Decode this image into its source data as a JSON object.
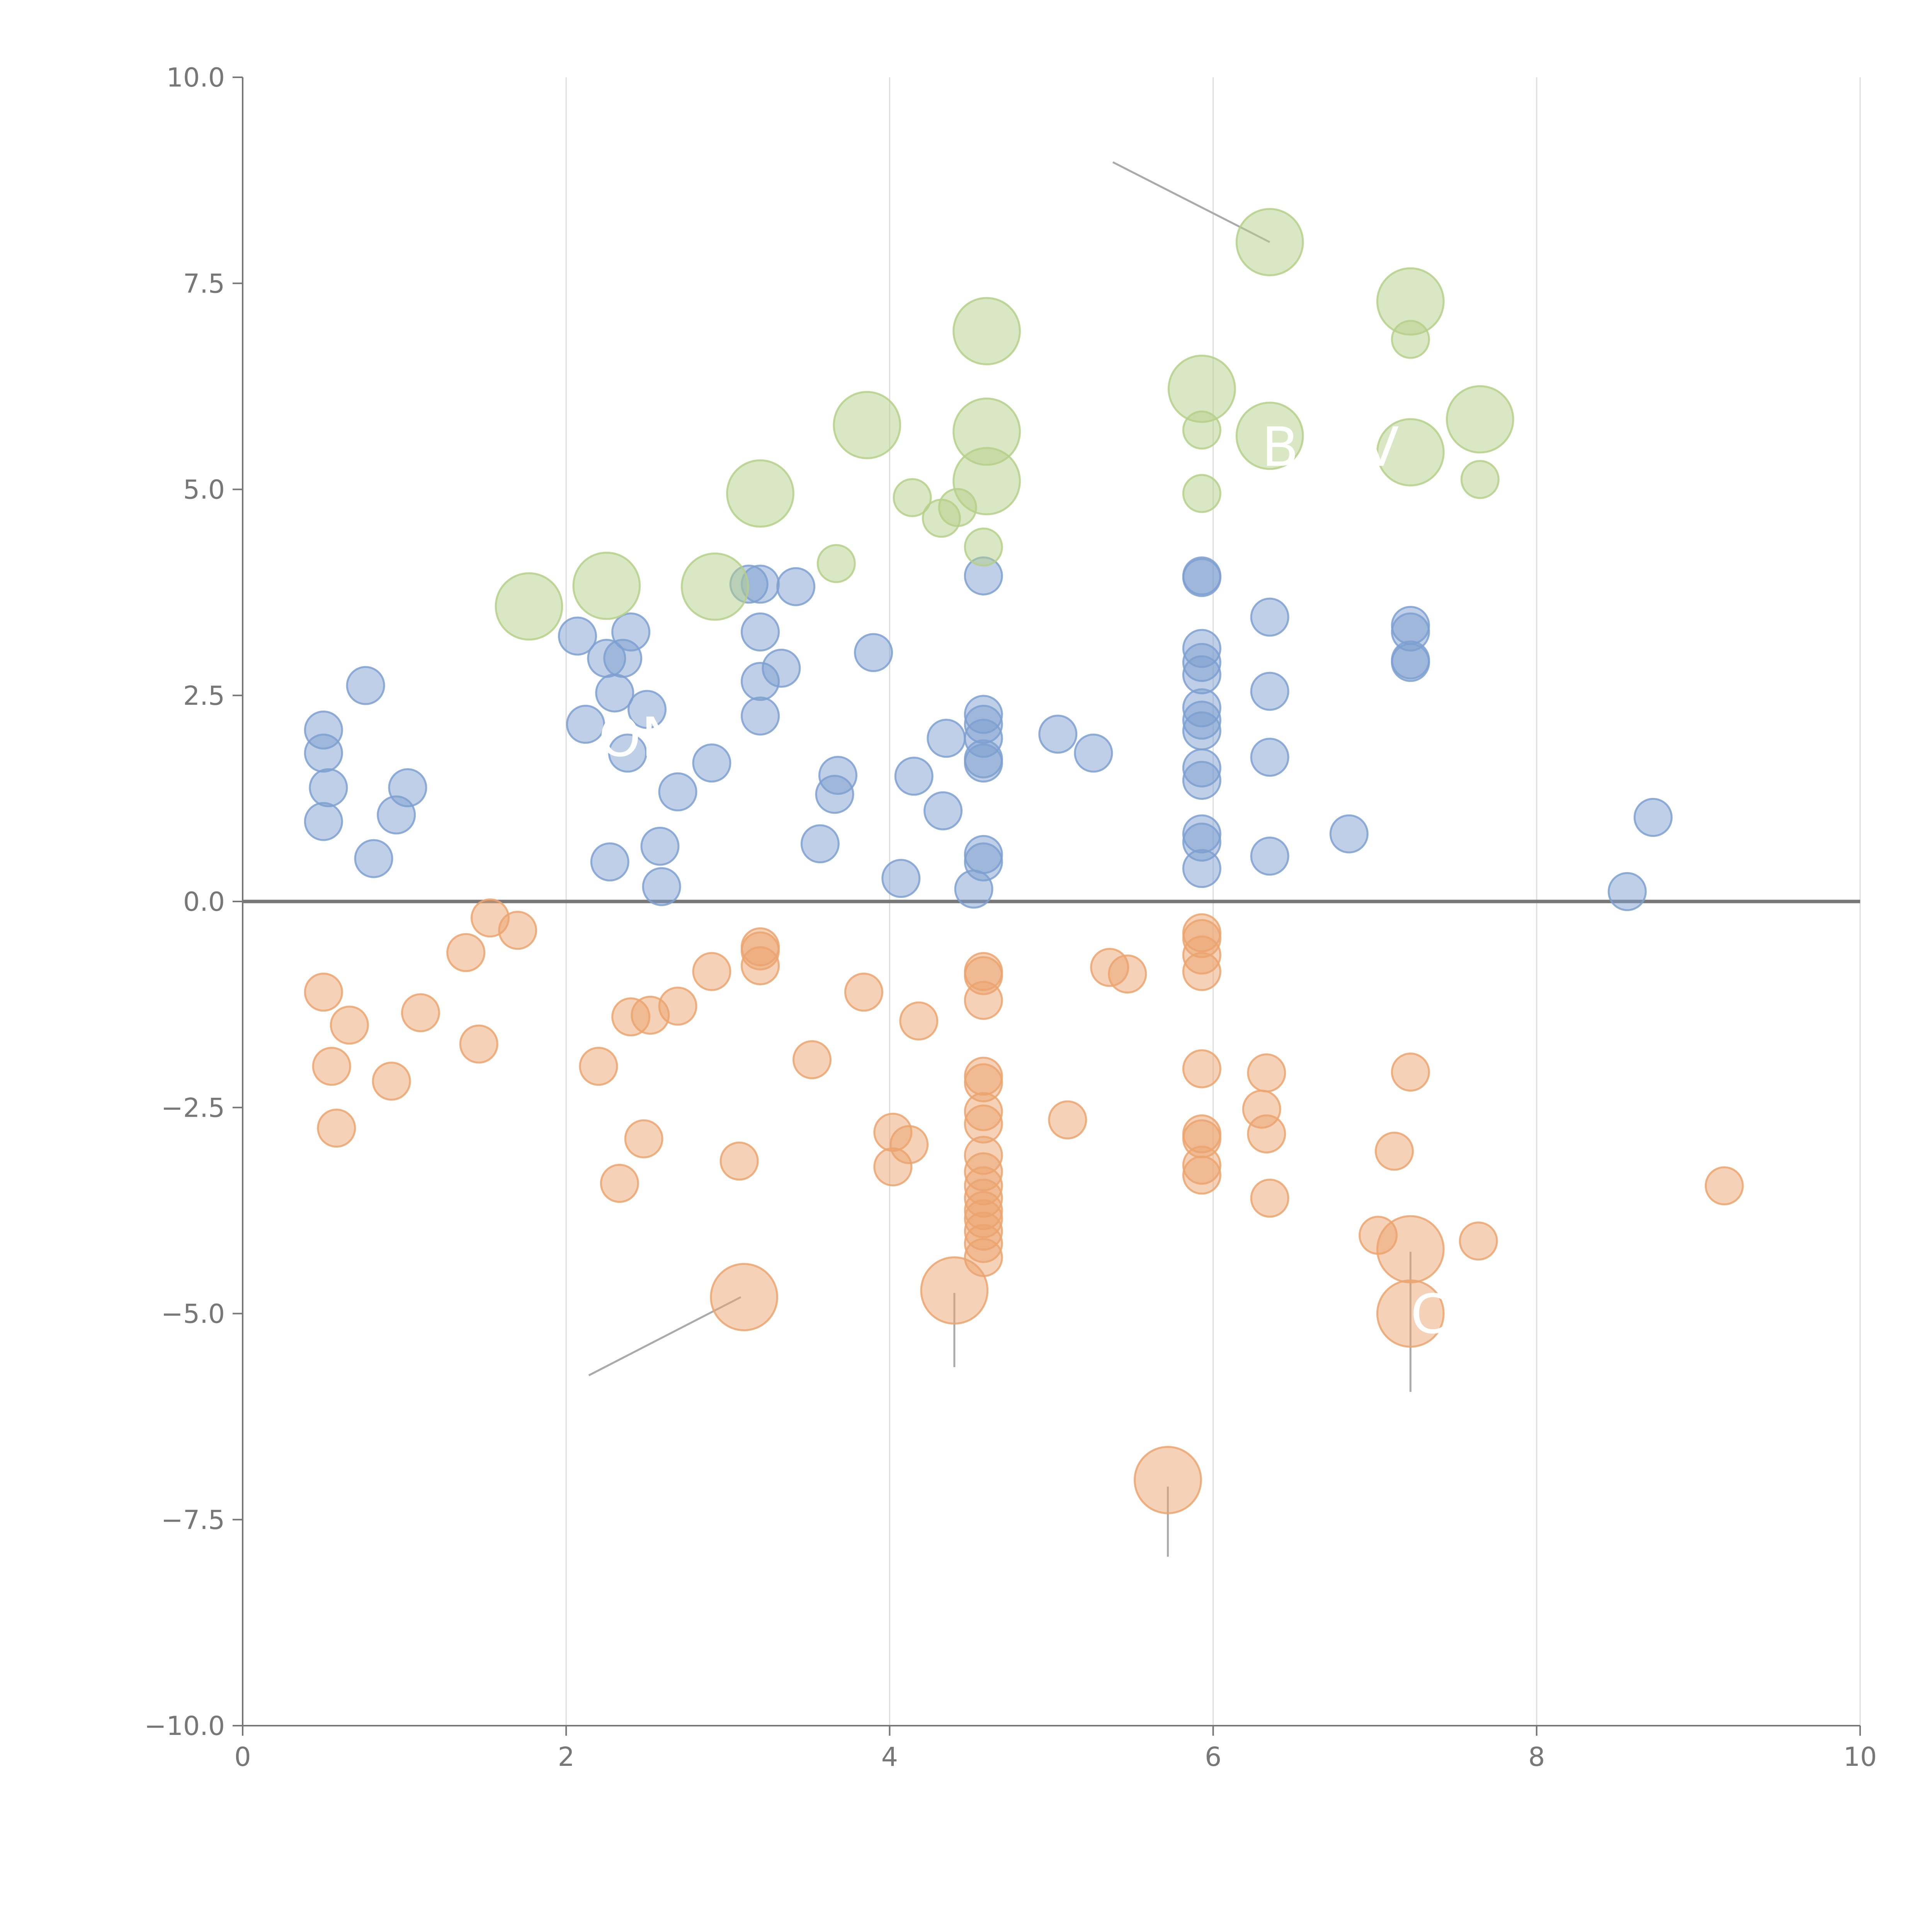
{
  "colors": {
    "positive": "#7ea0d0",
    "negative": "#eba46f",
    "highlight": "#b5d08a",
    "axis": "#777777",
    "zero_line": "#777777",
    "grid": "#dddddd",
    "leader": "#aaaaaa"
  },
  "chart_data": {
    "type": "scatter",
    "title": "",
    "xlabel": "",
    "ylabel": "",
    "xlim": [
      0,
      10
    ],
    "ylim": [
      -10,
      10
    ],
    "x_ticks": [
      0,
      2,
      4,
      6,
      8,
      10
    ],
    "x_tick_labels": [
      "0",
      "2",
      "4",
      "6",
      "8",
      "10"
    ],
    "y_ticks": [
      10,
      7.5,
      5,
      2.5,
      0,
      -2.5,
      -5,
      -7.5,
      -10
    ],
    "y_tick_labels": [
      "10.0",
      "7.5",
      "5.0",
      "2.5",
      "0.0",
      "−2.5",
      "−5.0",
      "−7.5",
      "−10.0"
    ],
    "grid": "vertical lines at major x ticks",
    "zero_line": 0,
    "series": [
      {
        "name": "positive",
        "color": "#7ea0d0",
        "points": [
          [
            0.5,
            2.08,
            1
          ],
          [
            0.5,
            1.8,
            1
          ],
          [
            0.53,
            1.38,
            1
          ],
          [
            0.5,
            0.97,
            1
          ],
          [
            0.76,
            2.62,
            1
          ],
          [
            0.81,
            0.52,
            1
          ],
          [
            0.95,
            1.05,
            1
          ],
          [
            1.02,
            1.38,
            1
          ],
          [
            2.07,
            3.22,
            1
          ],
          [
            2.12,
            2.15,
            1
          ],
          [
            2.25,
            2.95,
            1
          ],
          [
            2.3,
            2.53,
            1
          ],
          [
            2.35,
            2.95,
            1
          ],
          [
            2.4,
            3.27,
            1
          ],
          [
            2.5,
            2.33,
            1
          ],
          [
            2.38,
            1.8,
            1
          ],
          [
            2.27,
            0.48,
            1
          ],
          [
            2.58,
            0.67,
            1
          ],
          [
            2.59,
            0.18,
            1
          ],
          [
            2.69,
            1.33,
            1
          ],
          [
            2.9,
            1.68,
            1
          ],
          [
            3.13,
            3.85,
            1
          ],
          [
            3.2,
            3.85,
            1
          ],
          [
            3.42,
            3.82,
            1
          ],
          [
            3.2,
            3.27,
            1
          ],
          [
            3.2,
            2.67,
            1
          ],
          [
            3.33,
            2.83,
            1
          ],
          [
            3.2,
            2.25,
            1
          ],
          [
            3.57,
            0.7,
            1
          ],
          [
            3.66,
            1.3,
            1
          ],
          [
            3.68,
            1.53,
            1
          ],
          [
            3.9,
            3.02,
            1
          ],
          [
            4.07,
            0.28,
            1
          ],
          [
            4.15,
            1.52,
            1
          ],
          [
            4.33,
            1.1,
            1
          ],
          [
            4.35,
            1.98,
            1
          ],
          [
            4.58,
            3.95,
            1
          ],
          [
            4.58,
            2.27,
            1
          ],
          [
            4.58,
            2.15,
            1
          ],
          [
            4.58,
            1.98,
            1
          ],
          [
            4.58,
            1.73,
            1
          ],
          [
            4.58,
            1.68,
            1
          ],
          [
            4.58,
            0.57,
            1
          ],
          [
            4.58,
            0.48,
            1
          ],
          [
            4.52,
            0.15,
            1
          ],
          [
            5.04,
            2.03,
            1
          ],
          [
            5.26,
            1.8,
            1
          ],
          [
            5.93,
            3.95,
            1
          ],
          [
            5.93,
            3.93,
            1
          ],
          [
            5.93,
            3.07,
            1
          ],
          [
            5.93,
            2.9,
            1
          ],
          [
            5.93,
            2.75,
            1
          ],
          [
            5.93,
            2.35,
            1
          ],
          [
            5.93,
            2.2,
            1
          ],
          [
            5.93,
            2.07,
            1
          ],
          [
            5.93,
            1.62,
            1
          ],
          [
            5.93,
            1.47,
            1
          ],
          [
            5.93,
            0.82,
            1
          ],
          [
            5.93,
            0.72,
            1
          ],
          [
            5.93,
            0.4,
            1
          ],
          [
            6.35,
            3.45,
            1
          ],
          [
            6.35,
            2.55,
            1
          ],
          [
            6.35,
            1.75,
            1
          ],
          [
            6.35,
            0.55,
            1
          ],
          [
            6.84,
            0.82,
            1
          ],
          [
            7.22,
            3.35,
            1
          ],
          [
            7.22,
            3.27,
            1
          ],
          [
            7.22,
            2.93,
            1
          ],
          [
            7.22,
            2.9,
            1
          ],
          [
            8.56,
            0.12,
            1
          ],
          [
            8.72,
            1.02,
            1
          ]
        ]
      },
      {
        "name": "negative",
        "color": "#eba46f",
        "points": [
          [
            0.5,
            -1.1,
            1
          ],
          [
            0.55,
            -2.0,
            1
          ],
          [
            0.58,
            -2.75,
            1
          ],
          [
            0.66,
            -1.5,
            1
          ],
          [
            0.92,
            -2.18,
            1
          ],
          [
            1.1,
            -1.35,
            1
          ],
          [
            1.38,
            -0.62,
            1
          ],
          [
            1.46,
            -1.73,
            1
          ],
          [
            1.53,
            -0.2,
            1
          ],
          [
            1.7,
            -0.35,
            1
          ],
          [
            2.2,
            -2.0,
            1
          ],
          [
            2.33,
            -3.42,
            1
          ],
          [
            2.4,
            -1.4,
            1
          ],
          [
            2.48,
            -2.88,
            1
          ],
          [
            2.52,
            -1.38,
            1
          ],
          [
            2.69,
            -1.27,
            1
          ],
          [
            2.9,
            -0.85,
            1
          ],
          [
            3.07,
            -3.15,
            1
          ],
          [
            3.2,
            -0.55,
            1
          ],
          [
            3.2,
            -0.6,
            1
          ],
          [
            3.2,
            -0.78,
            1
          ],
          [
            3.52,
            -1.92,
            1
          ],
          [
            3.84,
            -1.1,
            1
          ],
          [
            4.02,
            -2.8,
            1
          ],
          [
            4.02,
            -3.22,
            1
          ],
          [
            4.12,
            -2.95,
            1
          ],
          [
            4.18,
            -1.45,
            1
          ],
          [
            4.58,
            -0.85,
            1
          ],
          [
            4.58,
            -0.9,
            1
          ],
          [
            4.58,
            -1.2,
            1
          ],
          [
            4.58,
            -2.12,
            1
          ],
          [
            4.58,
            -2.2,
            1
          ],
          [
            4.58,
            -2.55,
            1
          ],
          [
            4.58,
            -2.7,
            1
          ],
          [
            4.58,
            -3.08,
            1
          ],
          [
            4.58,
            -3.28,
            1
          ],
          [
            4.58,
            -3.45,
            1
          ],
          [
            4.58,
            -3.6,
            1
          ],
          [
            4.58,
            -3.75,
            1
          ],
          [
            4.58,
            -3.85,
            1
          ],
          [
            4.58,
            -4.0,
            1
          ],
          [
            4.58,
            -4.15,
            1
          ],
          [
            4.58,
            -4.32,
            1
          ],
          [
            5.1,
            -2.65,
            1
          ],
          [
            5.36,
            -0.8,
            1
          ],
          [
            5.47,
            -0.88,
            1
          ],
          [
            5.93,
            -0.38,
            1
          ],
          [
            5.93,
            -0.45,
            1
          ],
          [
            5.93,
            -0.65,
            1
          ],
          [
            5.93,
            -0.85,
            1
          ],
          [
            5.93,
            -2.03,
            1
          ],
          [
            5.93,
            -2.82,
            1
          ],
          [
            5.93,
            -2.88,
            1
          ],
          [
            5.93,
            -3.2,
            1
          ],
          [
            5.93,
            -3.32,
            1
          ],
          [
            6.3,
            -2.52,
            1
          ],
          [
            6.33,
            -2.08,
            1
          ],
          [
            6.33,
            -2.82,
            1
          ],
          [
            6.35,
            -3.6,
            1
          ],
          [
            7.02,
            -4.05,
            1
          ],
          [
            7.12,
            -3.03,
            1
          ],
          [
            7.22,
            -2.07,
            1
          ],
          [
            7.64,
            -4.12,
            1
          ],
          [
            9.16,
            -3.45,
            1
          ],
          [
            3.1,
            -4.8,
            3.2
          ],
          [
            4.4,
            -4.72,
            3.2
          ],
          [
            7.22,
            -4.22,
            3.2
          ],
          [
            7.22,
            -5.0,
            3.2
          ],
          [
            5.72,
            -7.02,
            3.2
          ]
        ]
      },
      {
        "name": "highlight",
        "color": "#b5d08a",
        "points": [
          [
            1.77,
            3.58,
            3.2
          ],
          [
            2.25,
            3.83,
            3.2
          ],
          [
            2.92,
            3.82,
            3.2
          ],
          [
            3.2,
            4.95,
            3.2
          ],
          [
            3.67,
            4.1,
            1
          ],
          [
            3.86,
            5.78,
            3.2
          ],
          [
            4.14,
            4.9,
            1
          ],
          [
            4.32,
            4.65,
            1
          ],
          [
            4.42,
            4.78,
            1
          ],
          [
            4.6,
            6.92,
            3.2
          ],
          [
            4.6,
            5.7,
            3.2
          ],
          [
            4.6,
            5.1,
            3.2
          ],
          [
            4.58,
            4.3,
            1
          ],
          [
            5.93,
            6.22,
            3.2
          ],
          [
            5.93,
            5.72,
            1
          ],
          [
            5.93,
            4.95,
            1
          ],
          [
            6.35,
            8.0,
            3.2
          ],
          [
            6.35,
            5.65,
            3.2
          ],
          [
            7.22,
            7.28,
            3.2
          ],
          [
            7.22,
            6.82,
            1
          ],
          [
            7.22,
            5.45,
            3.2
          ],
          [
            7.65,
            5.85,
            3.2
          ],
          [
            7.65,
            5.12,
            1
          ]
        ]
      }
    ],
    "annotations": [
      {
        "text": "ON",
        "x": 2.2,
        "y": 2.0
      },
      {
        "text": "B",
        "x": 6.3,
        "y": 5.52
      },
      {
        "text": "V",
        "x": 6.92,
        "y": 5.52
      },
      {
        "text": "C",
        "x": 7.22,
        "y": -5.0
      }
    ],
    "leader_lines": [
      {
        "from": [
          6.35,
          8.0
        ],
        "to": [
          5.38,
          8.97
        ]
      },
      {
        "from": [
          3.08,
          -4.8
        ],
        "to": [
          2.14,
          -5.75
        ]
      },
      {
        "from": [
          4.4,
          -4.75
        ],
        "to": [
          4.4,
          -5.65
        ]
      },
      {
        "from": [
          7.22,
          -4.25
        ],
        "to": [
          7.22,
          -5.95
        ]
      },
      {
        "from": [
          5.72,
          -7.1
        ],
        "to": [
          5.72,
          -7.95
        ]
      }
    ]
  }
}
